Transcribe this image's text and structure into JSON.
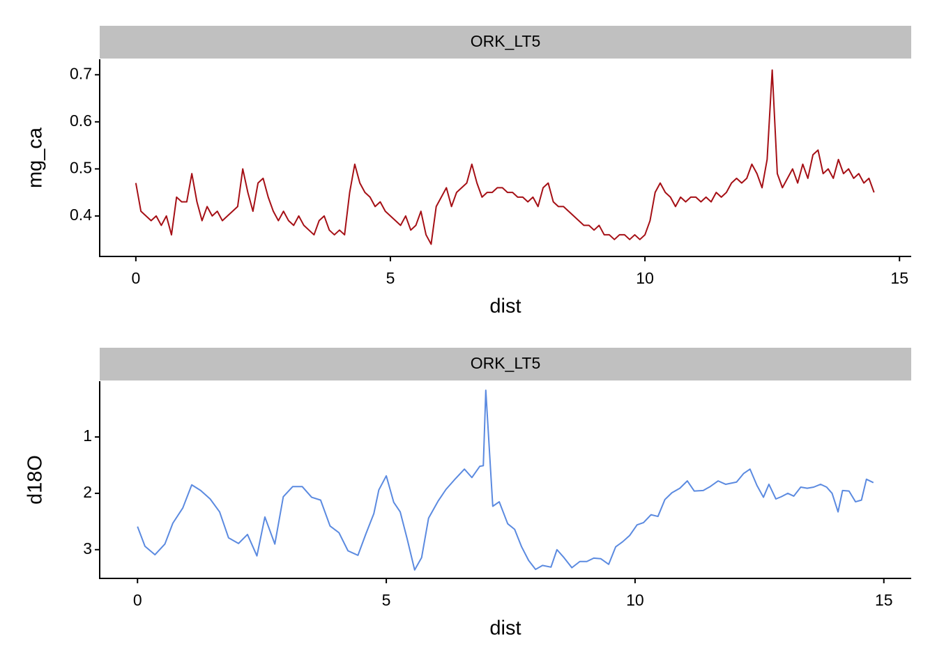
{
  "chart_data": [
    {
      "type": "line",
      "strip": "ORK_LT5",
      "xlabel": "dist",
      "ylabel": "mg_ca",
      "xlim": [
        -0.71,
        15.23
      ],
      "xticks": [
        0,
        5,
        10,
        15
      ],
      "ylim": [
        0.314,
        0.733
      ],
      "yticks": [
        0.4,
        0.5,
        0.6,
        0.7
      ],
      "x": [
        0,
        0.1,
        0.2,
        0.3,
        0.4,
        0.5,
        0.6,
        0.7,
        0.8,
        0.9,
        1,
        1.1,
        1.2,
        1.3,
        1.4,
        1.5,
        1.6,
        1.7,
        1.8,
        1.9,
        2,
        2.1,
        2.2,
        2.3,
        2.4,
        2.5,
        2.6,
        2.7,
        2.8,
        2.9,
        3,
        3.1,
        3.2,
        3.3,
        3.4,
        3.5,
        3.6,
        3.7,
        3.8,
        3.9,
        4,
        4.1,
        4.2,
        4.3,
        4.4,
        4.5,
        4.6,
        4.7,
        4.8,
        4.9,
        5,
        5.1,
        5.2,
        5.3,
        5.4,
        5.5,
        5.6,
        5.7,
        5.8,
        5.9,
        6,
        6.1,
        6.2,
        6.3,
        6.4,
        6.5,
        6.6,
        6.7,
        6.8,
        6.9,
        7,
        7.1,
        7.2,
        7.3,
        7.4,
        7.5,
        7.6,
        7.7,
        7.8,
        7.9,
        8,
        8.1,
        8.2,
        8.3,
        8.4,
        8.5,
        8.6,
        8.7,
        8.8,
        8.9,
        9,
        9.1,
        9.2,
        9.3,
        9.4,
        9.5,
        9.6,
        9.7,
        9.8,
        9.9,
        10,
        10.1,
        10.2,
        10.3,
        10.4,
        10.5,
        10.6,
        10.7,
        10.8,
        10.9,
        11,
        11.1,
        11.2,
        11.3,
        11.4,
        11.5,
        11.6,
        11.7,
        11.8,
        11.9,
        12,
        12.1,
        12.2,
        12.3,
        12.4,
        12.5,
        12.6,
        12.7,
        12.8,
        12.9,
        13,
        13.1,
        13.2,
        13.3,
        13.4,
        13.5,
        13.6,
        13.7,
        13.8,
        13.9,
        14,
        14.1,
        14.2,
        14.3,
        14.4,
        14.5
      ],
      "series": [
        {
          "color": "#a50f15",
          "values": [
            0.47,
            0.41,
            0.4,
            0.39,
            0.4,
            0.38,
            0.4,
            0.36,
            0.44,
            0.43,
            0.43,
            0.49,
            0.43,
            0.39,
            0.42,
            0.4,
            0.41,
            0.39,
            0.4,
            0.41,
            0.42,
            0.5,
            0.45,
            0.41,
            0.47,
            0.48,
            0.44,
            0.41,
            0.39,
            0.41,
            0.39,
            0.38,
            0.4,
            0.38,
            0.37,
            0.36,
            0.39,
            0.4,
            0.37,
            0.36,
            0.37,
            0.36,
            0.45,
            0.51,
            0.47,
            0.45,
            0.44,
            0.42,
            0.43,
            0.41,
            0.4,
            0.39,
            0.38,
            0.4,
            0.37,
            0.38,
            0.41,
            0.36,
            0.34,
            0.42,
            0.44,
            0.46,
            0.42,
            0.45,
            0.46,
            0.47,
            0.51,
            0.47,
            0.44,
            0.45,
            0.45,
            0.46,
            0.46,
            0.45,
            0.45,
            0.44,
            0.44,
            0.43,
            0.44,
            0.42,
            0.46,
            0.47,
            0.43,
            0.42,
            0.42,
            0.41,
            0.4,
            0.39,
            0.38,
            0.38,
            0.37,
            0.38,
            0.36,
            0.36,
            0.35,
            0.36,
            0.36,
            0.35,
            0.36,
            0.35,
            0.36,
            0.39,
            0.45,
            0.47,
            0.45,
            0.44,
            0.42,
            0.44,
            0.43,
            0.44,
            0.44,
            0.43,
            0.44,
            0.43,
            0.45,
            0.44,
            0.45,
            0.47,
            0.48,
            0.47,
            0.48,
            0.51,
            0.49,
            0.46,
            0.52,
            0.71,
            0.49,
            0.46,
            0.48,
            0.5,
            0.47,
            0.51,
            0.48,
            0.53,
            0.54,
            0.49,
            0.5,
            0.48,
            0.52,
            0.49,
            0.5,
            0.48,
            0.49,
            0.47,
            0.48,
            0.45
          ]
        }
      ]
    },
    {
      "type": "line",
      "strip": "ORK_LT5",
      "xlabel": "dist",
      "ylabel": "d18O",
      "xlim": [
        -0.76,
        15.55
      ],
      "xticks": [
        0,
        5,
        10,
        15
      ],
      "ylim": [
        0.01,
        3.51
      ],
      "y_reverse": true,
      "yticks": [
        1,
        2,
        3
      ],
      "x": [
        0,
        0.15,
        0.35,
        0.55,
        0.71,
        0.91,
        1.09,
        1.27,
        1.46,
        1.65,
        1.83,
        2.03,
        2.21,
        2.4,
        2.56,
        2.76,
        2.93,
        3.12,
        3.31,
        3.5,
        3.68,
        3.87,
        4.05,
        4.23,
        4.43,
        4.59,
        4.75,
        4.85,
        5,
        5.15,
        5.28,
        5.42,
        5.57,
        5.71,
        5.85,
        6.04,
        6.2,
        6.39,
        6.57,
        6.72,
        6.88,
        6.95,
        7,
        7.14,
        7.27,
        7.44,
        7.58,
        7.72,
        7.86,
        8,
        8.14,
        8.31,
        8.43,
        8.57,
        8.73,
        8.89,
        9.03,
        9.17,
        9.31,
        9.47,
        9.61,
        9.75,
        9.89,
        10.04,
        10.17,
        10.32,
        10.46,
        10.6,
        10.74,
        10.9,
        11.05,
        11.19,
        11.37,
        11.51,
        11.67,
        11.82,
        12.04,
        12.18,
        12.31,
        12.45,
        12.58,
        12.69,
        12.83,
        12.94,
        13.07,
        13.19,
        13.33,
        13.46,
        13.59,
        13.73,
        13.85,
        13.96,
        14.08,
        14.17,
        14.3,
        14.43,
        14.55,
        14.65,
        14.79
      ],
      "series": [
        {
          "color": "#5b8ae0",
          "values": [
            2.59,
            2.94,
            3.09,
            2.9,
            2.53,
            2.26,
            1.85,
            1.95,
            2.1,
            2.33,
            2.79,
            2.89,
            2.73,
            3.11,
            2.42,
            2.9,
            2.06,
            1.88,
            1.88,
            2.07,
            2.12,
            2.58,
            2.7,
            3.02,
            3.1,
            2.72,
            2.36,
            1.94,
            1.69,
            2.16,
            2.33,
            2.81,
            3.36,
            3.14,
            2.44,
            2.14,
            1.93,
            1.74,
            1.57,
            1.72,
            1.52,
            1.51,
            0.17,
            2.23,
            2.15,
            2.54,
            2.64,
            2.95,
            3.19,
            3.35,
            3.28,
            3.31,
            3,
            3.14,
            3.32,
            3.21,
            3.21,
            3.15,
            3.16,
            3.26,
            2.95,
            2.86,
            2.75,
            2.56,
            2.52,
            2.38,
            2.41,
            2.11,
            1.99,
            1.91,
            1.78,
            1.96,
            1.95,
            1.88,
            1.78,
            1.84,
            1.8,
            1.65,
            1.57,
            1.86,
            2.07,
            1.84,
            2.1,
            2.06,
            2,
            2.05,
            1.89,
            1.91,
            1.89,
            1.84,
            1.89,
            2,
            2.33,
            1.95,
            1.96,
            2.15,
            2.12,
            1.75,
            1.81
          ]
        }
      ]
    }
  ]
}
